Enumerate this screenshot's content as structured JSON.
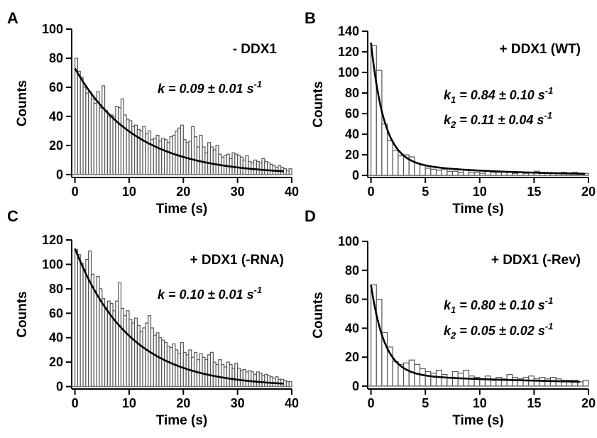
{
  "chart_data": [
    {
      "panel": "A",
      "type": "bar",
      "condition_label": "- DDX1",
      "rate_labels": [
        "k = 0.09 ± 0.01 s-1"
      ],
      "rate_parts": [
        {
          "sym": "k",
          "sub": "",
          "text": " = 0.09 ± 0.01 s",
          "sup": "-1"
        }
      ],
      "xlabel": "Time (s)",
      "ylabel": "Counts",
      "xlim": [
        -0.6,
        40
      ],
      "ylim": [
        -2,
        100
      ],
      "xticks": [
        0,
        10,
        20,
        30,
        40
      ],
      "yticks": [
        0,
        20,
        40,
        60,
        80,
        100
      ],
      "bin_width": 0.5,
      "bin_start": 0,
      "values": [
        80,
        71,
        67,
        60,
        56,
        57,
        52,
        49,
        57,
        46,
        61,
        44,
        40,
        41,
        40,
        47,
        46,
        52,
        41,
        38,
        37,
        33,
        34,
        31,
        30,
        33,
        28,
        30,
        24,
        25,
        27,
        23,
        25,
        24,
        22,
        26,
        27,
        30,
        32,
        34,
        24,
        22,
        23,
        33,
        26,
        19,
        27,
        19,
        15,
        22,
        19,
        17,
        20,
        14,
        12,
        13,
        14,
        11,
        15,
        14,
        13,
        12,
        10,
        13,
        9,
        8,
        10,
        9,
        8,
        11,
        9,
        8,
        7,
        6,
        5,
        6,
        5,
        4,
        3,
        4
      ],
      "fit": {
        "model": "single exponential",
        "A": 73,
        "k": 0.09,
        "offset": 0,
        "x_range": [
          0,
          38.5
        ]
      }
    },
    {
      "panel": "B",
      "type": "bar",
      "condition_label": "+ DDX1 (WT)",
      "rate_labels": [
        "k1 = 0.84 ± 0.10 s-1",
        "k2 = 0.11 ± 0.04 s-1"
      ],
      "rate_parts": [
        {
          "sym": "k",
          "sub": "1",
          "text": " = 0.84 ± 0.10 s",
          "sup": "-1"
        },
        {
          "sym": "k",
          "sub": "2",
          "text": " = 0.11 ± 0.04 s",
          "sup": "-1"
        }
      ],
      "xlabel": "Time (s)",
      "ylabel": "Counts",
      "xlim": [
        -0.3,
        20
      ],
      "ylim": [
        -2,
        140
      ],
      "xticks": [
        0,
        5,
        10,
        15,
        20
      ],
      "yticks": [
        0,
        20,
        40,
        60,
        80,
        100,
        120,
        140
      ],
      "bin_width": 0.5,
      "bin_start": 0,
      "values": [
        126,
        102,
        50,
        34,
        24,
        19,
        20,
        18,
        12,
        10,
        7,
        6,
        5,
        6,
        4,
        4,
        3,
        5,
        3,
        3,
        2,
        4,
        3,
        3,
        3,
        3,
        2,
        3,
        2,
        3,
        4,
        2,
        2,
        2,
        2,
        3,
        2,
        3,
        2,
        2
      ],
      "fit": {
        "model": "double exponential",
        "A1": 115,
        "k1": 0.84,
        "A2": 14,
        "k2": 0.11,
        "x_range": [
          0,
          19.7
        ]
      }
    },
    {
      "panel": "C",
      "type": "bar",
      "condition_label": "+ DDX1 (-RNA)",
      "rate_labels": [
        "k = 0.10 ± 0.01 s-1"
      ],
      "rate_parts": [
        {
          "sym": "k",
          "sub": "",
          "text": " = 0.10 ± 0.01 s",
          "sup": "-1"
        }
      ],
      "xlabel": "Time (s)",
      "ylabel": "Counts",
      "xlim": [
        -0.6,
        40
      ],
      "ylim": [
        -2,
        120
      ],
      "xticks": [
        0,
        10,
        20,
        30,
        40
      ],
      "yticks": [
        0,
        20,
        40,
        60,
        80,
        100,
        120
      ],
      "bin_width": 0.5,
      "bin_start": 0,
      "values": [
        112,
        108,
        101,
        96,
        104,
        111,
        92,
        78,
        90,
        80,
        72,
        65,
        70,
        68,
        62,
        70,
        85,
        64,
        58,
        62,
        55,
        52,
        56,
        50,
        45,
        48,
        52,
        58,
        48,
        42,
        44,
        40,
        38,
        36,
        33,
        32,
        35,
        30,
        27,
        36,
        28,
        26,
        30,
        24,
        28,
        22,
        27,
        24,
        22,
        26,
        28,
        20,
        18,
        22,
        18,
        16,
        20,
        18,
        15,
        19,
        15,
        13,
        14,
        12,
        13,
        12,
        10,
        12,
        11,
        9,
        10,
        9,
        8,
        7,
        8,
        6,
        6,
        5,
        4,
        4
      ],
      "fit": {
        "model": "single exponential",
        "A": 113,
        "k": 0.1,
        "offset": 0,
        "x_range": [
          0,
          38.5
        ]
      }
    },
    {
      "panel": "D",
      "type": "bar",
      "condition_label": "+ DDX1 (-Rev)",
      "rate_labels": [
        "k1 = 0.80 ± 0.10 s-1",
        "k2 = 0.05 ± 0.02 s-1"
      ],
      "rate_parts": [
        {
          "sym": "k",
          "sub": "1",
          "text": " = 0.80 ± 0.10 s",
          "sup": "-1"
        },
        {
          "sym": "k",
          "sub": "2",
          "text": " = 0.05 ± 0.02 s",
          "sup": "-1"
        }
      ],
      "xlabel": "Time (s)",
      "ylabel": "Counts",
      "xlim": [
        -0.3,
        20
      ],
      "ylim": [
        -2,
        100
      ],
      "xticks": [
        0,
        5,
        10,
        15,
        20
      ],
      "yticks": [
        0,
        20,
        40,
        60,
        80,
        100
      ],
      "bin_width": 0.5,
      "bin_start": 0,
      "values": [
        70,
        60,
        37,
        27,
        17,
        15,
        16,
        18,
        15,
        12,
        10,
        9,
        11,
        8,
        6,
        10,
        9,
        11,
        7,
        6,
        5,
        7,
        4,
        6,
        5,
        8,
        6,
        5,
        6,
        7,
        5,
        6,
        5,
        6,
        5,
        4,
        4,
        4,
        3,
        4
      ],
      "fit": {
        "model": "double exponential",
        "A1": 62,
        "k1": 0.8,
        "A2": 8,
        "k2": 0.05,
        "x_range": [
          0,
          19.2
        ]
      }
    }
  ]
}
